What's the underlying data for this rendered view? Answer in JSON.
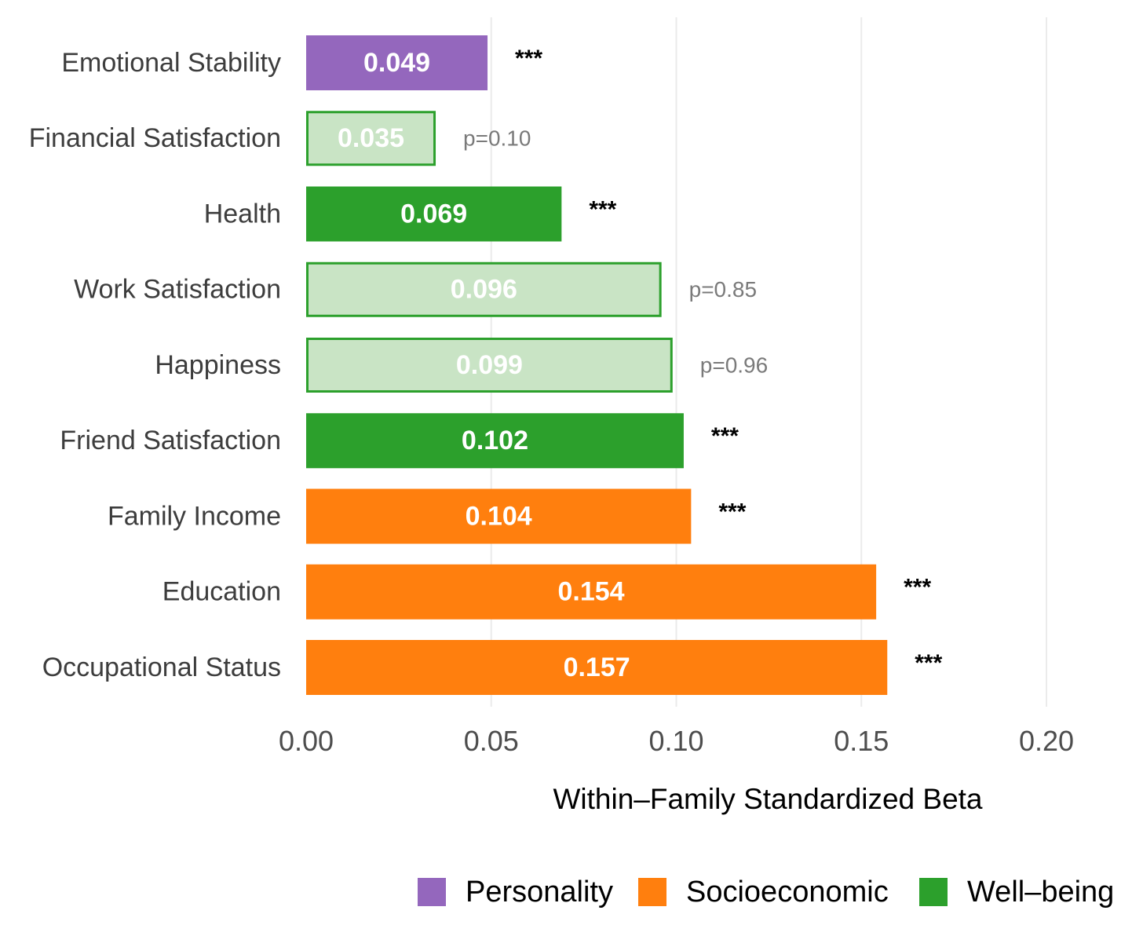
{
  "chart_data": {
    "type": "bar",
    "orientation": "horizontal",
    "xlabel": "Within–Family Standardized Beta",
    "ylabel": "",
    "xlim": [
      0,
      0.2
    ],
    "xticks": [
      "0.00",
      "0.05",
      "0.10",
      "0.15",
      "0.20"
    ],
    "xtick_values": [
      0,
      0.05,
      0.1,
      0.15,
      0.2
    ],
    "grid": "vertical major",
    "legend_position": "bottom-right",
    "legend": [
      {
        "name": "Personality",
        "color": "#9467bd"
      },
      {
        "name": "Socioeconomic",
        "color": "#ff7f0e"
      },
      {
        "name": "Well–being",
        "color": "#2ca02c"
      }
    ],
    "faded_fill": "#c9e4c5",
    "bars": [
      {
        "category": "Emotional Stability",
        "value": 0.049,
        "label": "0.049",
        "group": "Personality",
        "significant": true,
        "annotation": "***"
      },
      {
        "category": "Financial Satisfaction",
        "value": 0.035,
        "label": "0.035",
        "group": "Well–being",
        "significant": false,
        "annotation": "p=0.10"
      },
      {
        "category": "Health",
        "value": 0.069,
        "label": "0.069",
        "group": "Well–being",
        "significant": true,
        "annotation": "***"
      },
      {
        "category": "Work Satisfaction",
        "value": 0.096,
        "label": "0.096",
        "group": "Well–being",
        "significant": false,
        "annotation": "p=0.85"
      },
      {
        "category": "Happiness",
        "value": 0.099,
        "label": "0.099",
        "group": "Well–being",
        "significant": false,
        "annotation": "p=0.96"
      },
      {
        "category": "Friend Satisfaction",
        "value": 0.102,
        "label": "0.102",
        "group": "Well–being",
        "significant": true,
        "annotation": "***"
      },
      {
        "category": "Family Income",
        "value": 0.104,
        "label": "0.104",
        "group": "Socioeconomic",
        "significant": true,
        "annotation": "***"
      },
      {
        "category": "Education",
        "value": 0.154,
        "label": "0.154",
        "group": "Socioeconomic",
        "significant": true,
        "annotation": "***"
      },
      {
        "category": "Occupational Status",
        "value": 0.157,
        "label": "0.157",
        "group": "Socioeconomic",
        "significant": true,
        "annotation": "***"
      }
    ]
  }
}
